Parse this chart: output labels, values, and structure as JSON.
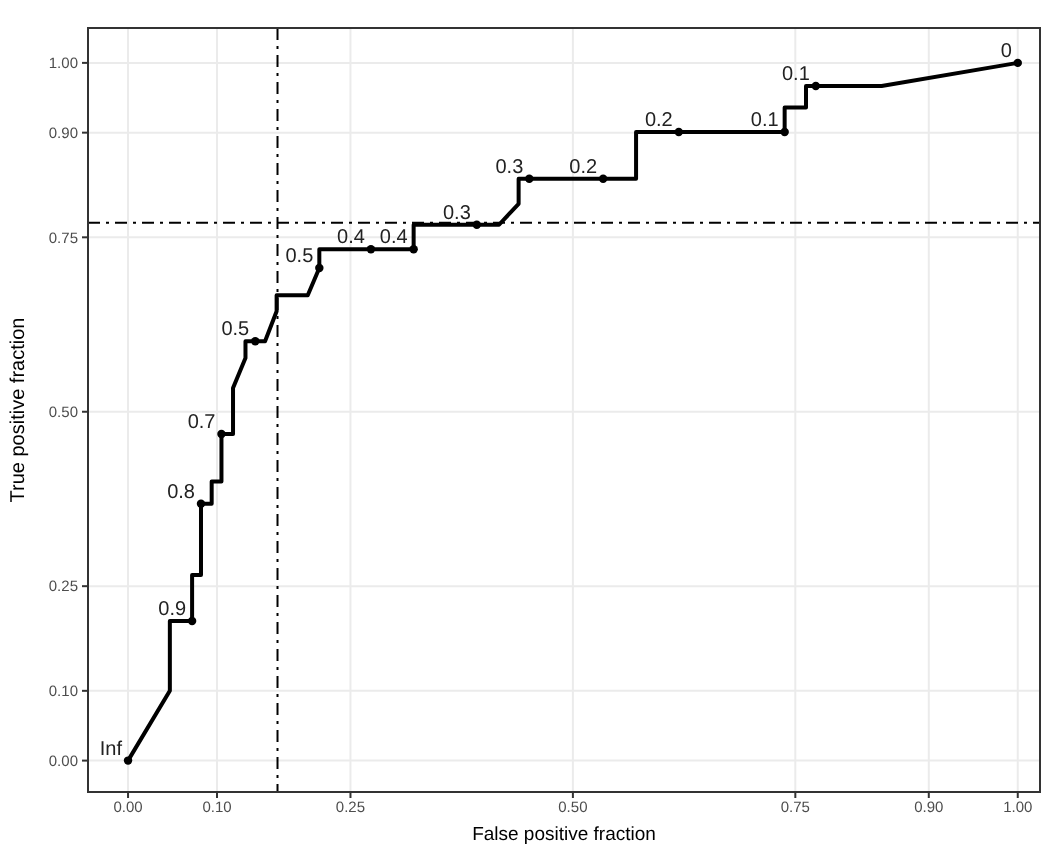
{
  "chart_data": {
    "type": "line",
    "xlabel": "False positive fraction",
    "ylabel": "True positive fraction",
    "xlim": [
      -0.045,
      1.025
    ],
    "ylim": [
      -0.045,
      1.05
    ],
    "xticks": [
      {
        "value": 0,
        "label": "0.00"
      },
      {
        "value": 0.1,
        "label": "0.10"
      },
      {
        "value": 0.25,
        "label": "0.25"
      },
      {
        "value": 0.5,
        "label": "0.50"
      },
      {
        "value": 0.75,
        "label": "0.75"
      },
      {
        "value": 0.9,
        "label": "0.90"
      },
      {
        "value": 1,
        "label": "1.00"
      }
    ],
    "yticks": [
      {
        "value": 0,
        "label": "0.00"
      },
      {
        "value": 0.1,
        "label": "0.10"
      },
      {
        "value": 0.25,
        "label": "0.25"
      },
      {
        "value": 0.5,
        "label": "0.50"
      },
      {
        "value": 0.75,
        "label": "0.75"
      },
      {
        "value": 0.9,
        "label": "0.90"
      },
      {
        "value": 1,
        "label": "1.00"
      }
    ],
    "grid": true,
    "series": [
      {
        "color": "#000000",
        "marker": "none",
        "x": [
          0,
          0.047,
          0.047,
          0.072,
          0.072,
          0.082,
          0.082,
          0.094,
          0.094,
          0.105,
          0.105,
          0.118,
          0.118,
          0.132,
          0.132,
          0.154,
          0.167,
          0.167,
          0.202,
          0.215,
          0.215,
          0.321,
          0.321,
          0.417,
          0.439,
          0.439,
          0.571,
          0.571,
          0.738,
          0.738,
          0.762,
          0.762,
          0.847,
          1
        ],
        "values": [
          0,
          0.1,
          0.2,
          0.2,
          0.266,
          0.266,
          0.368,
          0.368,
          0.4,
          0.4,
          0.468,
          0.468,
          0.534,
          0.577,
          0.601,
          0.601,
          0.644,
          0.667,
          0.667,
          0.706,
          0.733,
          0.733,
          0.768,
          0.768,
          0.798,
          0.834,
          0.834,
          0.901,
          0.901,
          0.936,
          0.936,
          0.967,
          0.967,
          1
        ]
      },
      {
        "type": "scatter",
        "color": "#000000",
        "marker": "circle",
        "x": [
          0,
          0.072,
          0.082,
          0.105,
          0.143,
          0.215,
          0.273,
          0.321,
          0.392,
          0.451,
          0.534,
          0.619,
          0.738,
          0.773,
          1
        ],
        "values": [
          0,
          0.2,
          0.368,
          0.468,
          0.601,
          0.706,
          0.733,
          0.733,
          0.768,
          0.834,
          0.834,
          0.901,
          0.901,
          0.967,
          1
        ]
      }
    ],
    "annotations": [
      {
        "text": "Inf",
        "x": 0,
        "y": 0
      },
      {
        "text": "0.9",
        "x": 0.072,
        "y": 0.2
      },
      {
        "text": "0.8",
        "x": 0.082,
        "y": 0.368
      },
      {
        "text": "0.7",
        "x": 0.105,
        "y": 0.468
      },
      {
        "text": "0.5",
        "x": 0.143,
        "y": 0.601
      },
      {
        "text": "0.5",
        "x": 0.215,
        "y": 0.706
      },
      {
        "text": "0.4",
        "x": 0.273,
        "y": 0.733
      },
      {
        "text": "0.4",
        "x": 0.321,
        "y": 0.733
      },
      {
        "text": "0.3",
        "x": 0.392,
        "y": 0.768
      },
      {
        "text": "0.3",
        "x": 0.451,
        "y": 0.834
      },
      {
        "text": "0.2",
        "x": 0.534,
        "y": 0.834
      },
      {
        "text": "0.2",
        "x": 0.619,
        "y": 0.901
      },
      {
        "text": "0.1",
        "x": 0.738,
        "y": 0.901
      },
      {
        "text": "0.1",
        "x": 0.773,
        "y": 0.967
      },
      {
        "text": "0",
        "x": 1,
        "y": 1
      }
    ],
    "ref_lines": [
      {
        "axis": "x",
        "value": 0.168,
        "line_style": "dashdot"
      },
      {
        "axis": "y",
        "value": 0.771,
        "line_style": "dashdot"
      }
    ]
  }
}
